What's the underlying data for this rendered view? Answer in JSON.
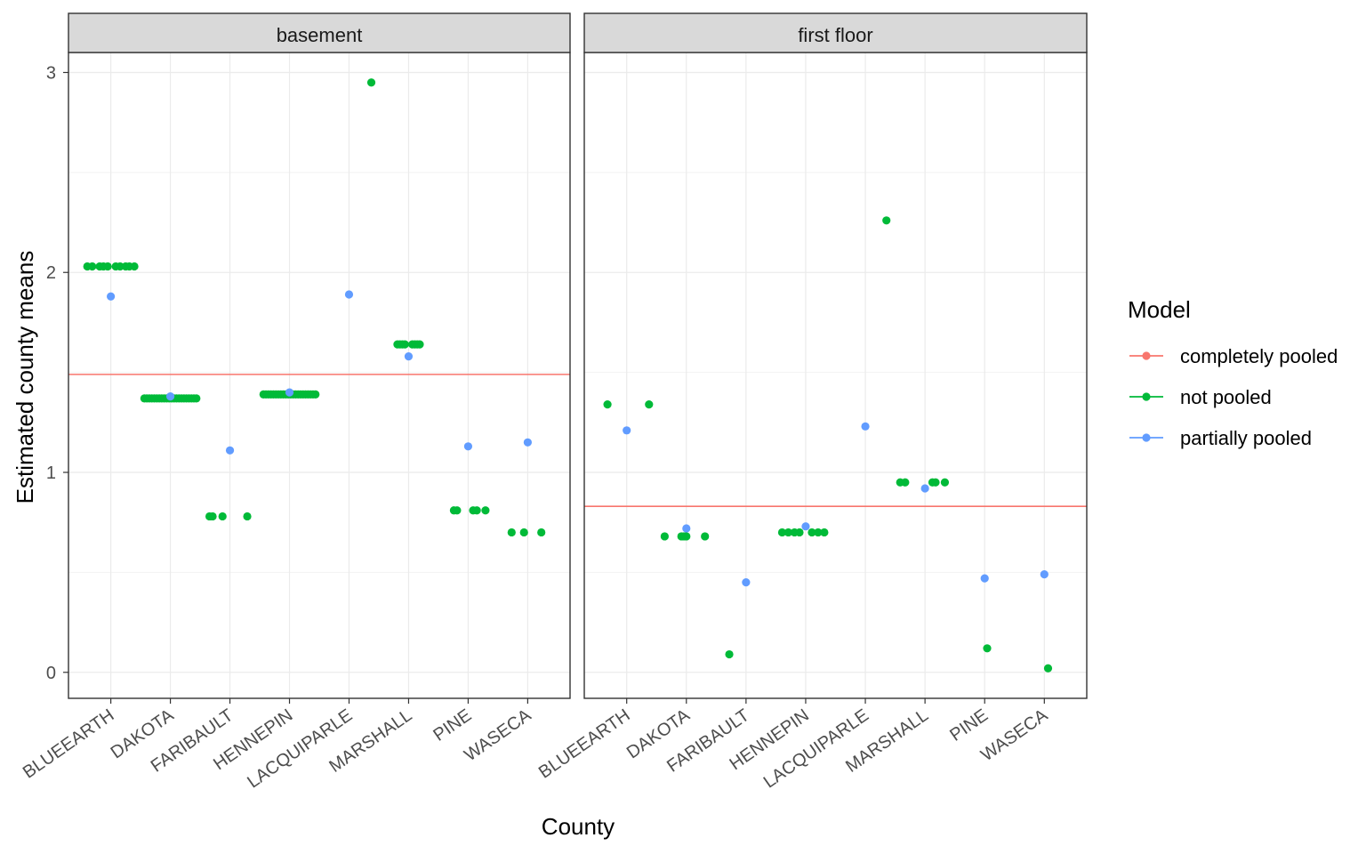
{
  "chart_data": {
    "type": "scatter",
    "ylabel": "Estimated county means",
    "xlabel": "County",
    "ylim": [
      -0.13,
      3.1
    ],
    "y_ticks": [
      0,
      1,
      2,
      3
    ],
    "categories": [
      "BLUEEARTH",
      "DAKOTA",
      "FARIBAULT",
      "HENNEPIN",
      "LACQUIPARLE",
      "MARSHALL",
      "PINE",
      "WASECA"
    ],
    "legend": {
      "title": "Model",
      "position": "right",
      "entries": [
        {
          "label": "completely pooled",
          "color": "#F8766D"
        },
        {
          "label": "not pooled",
          "color": "#00BA38"
        },
        {
          "label": "partially pooled",
          "color": "#619CFF"
        }
      ]
    },
    "grid": true,
    "panels": [
      {
        "strip": "basement",
        "completely_pooled": 1.49,
        "not_pooled": {
          "BLUEEARTH": {
            "value": 2.03,
            "offsets": [
              -0.38,
              -0.3,
              -0.18,
              -0.12,
              -0.05,
              0.08,
              0.15,
              0.24,
              0.3,
              0.38
            ]
          },
          "DAKOTA": {
            "value": 1.37,
            "offsets": [
              -0.42,
              -0.38,
              -0.34,
              -0.3,
              -0.26,
              -0.22,
              -0.18,
              -0.14,
              -0.1,
              -0.06,
              -0.02,
              0.02,
              0.06,
              0.1,
              0.14,
              0.18,
              0.22,
              0.26,
              0.3,
              0.34,
              0.38,
              0.42
            ]
          },
          "FARIBAULT": {
            "value": 0.78,
            "offsets": [
              -0.33,
              -0.28,
              -0.12,
              0.28
            ]
          },
          "HENNEPIN": {
            "value": 1.39,
            "offsets": [
              -0.42,
              -0.38,
              -0.34,
              -0.3,
              -0.26,
              -0.22,
              -0.18,
              -0.14,
              -0.1,
              -0.06,
              -0.02,
              0.02,
              0.06,
              0.1,
              0.14,
              0.18,
              0.22,
              0.26,
              0.3,
              0.34,
              0.38,
              0.42
            ]
          },
          "LACQUIPARLE": {
            "value": 2.95,
            "offsets": [
              0.36
            ]
          },
          "MARSHALL": {
            "value": 1.64,
            "offsets": [
              -0.18,
              -0.14,
              -0.1,
              -0.06,
              0.06,
              0.1,
              0.14,
              0.18
            ]
          },
          "PINE": {
            "value": 0.81,
            "offsets": [
              -0.23,
              -0.18,
              0.08,
              0.14,
              0.28
            ]
          },
          "WASECA": {
            "value": 0.7,
            "offsets": [
              -0.26,
              -0.06,
              0.22
            ]
          }
        },
        "partially_pooled": {
          "BLUEEARTH": 1.88,
          "DAKOTA": 1.38,
          "FARIBAULT": 1.11,
          "HENNEPIN": 1.4,
          "LACQUIPARLE": 1.89,
          "MARSHALL": 1.58,
          "PINE": 1.13,
          "WASECA": 1.15
        }
      },
      {
        "strip": "first floor",
        "completely_pooled": 0.83,
        "not_pooled": {
          "BLUEEARTH": {
            "value": 1.34,
            "offsets": [
              -0.31,
              0.36
            ]
          },
          "DAKOTA": {
            "value": 0.68,
            "offsets": [
              -0.35,
              -0.08,
              -0.04,
              0.0,
              0.3
            ]
          },
          "FARIBAULT": {
            "value": 0.09,
            "offsets": [
              -0.27
            ]
          },
          "HENNEPIN": {
            "value": 0.7,
            "offsets": [
              -0.38,
              -0.28,
              -0.18,
              -0.1,
              0.1,
              0.2,
              0.3
            ]
          },
          "LACQUIPARLE": {
            "value": 2.26,
            "offsets": [
              0.34
            ]
          },
          "MARSHALL": {
            "value": 0.95,
            "offsets": [
              -0.4,
              -0.32,
              0.12,
              0.17,
              0.32
            ]
          },
          "PINE": {
            "value": 0.12,
            "offsets": [
              0.04
            ]
          },
          "WASECA": {
            "value": 0.02,
            "offsets": [
              0.06
            ]
          }
        },
        "partially_pooled": {
          "BLUEEARTH": 1.21,
          "DAKOTA": 0.72,
          "FARIBAULT": 0.45,
          "HENNEPIN": 0.73,
          "LACQUIPARLE": 1.23,
          "MARSHALL": 0.92,
          "PINE": 0.47,
          "WASECA": 0.49
        }
      }
    ]
  }
}
